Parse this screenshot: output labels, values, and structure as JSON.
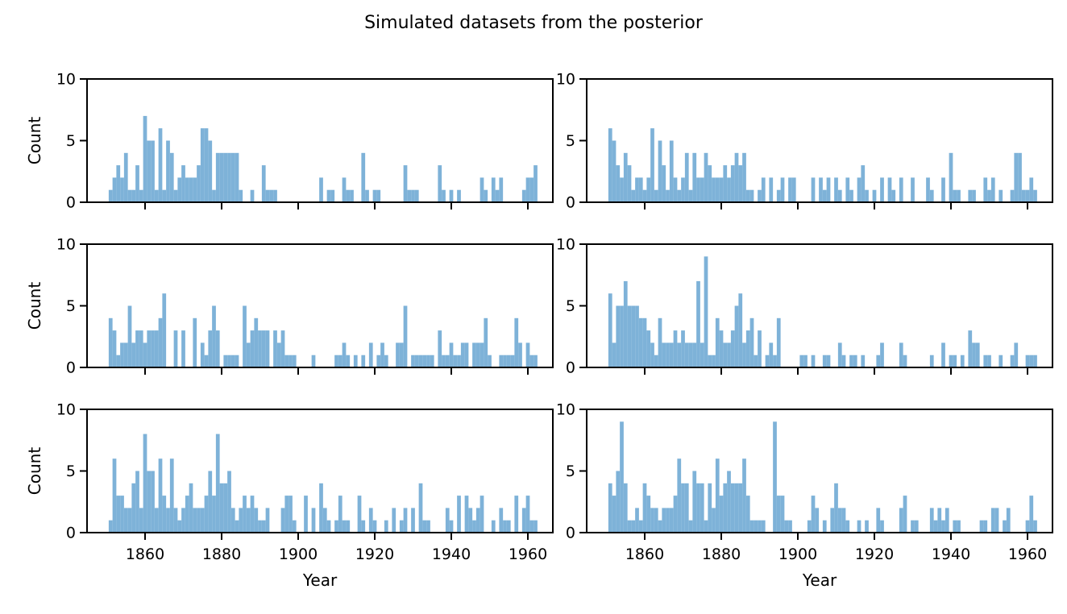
{
  "figure": {
    "title": "Simulated datasets from the posterior"
  },
  "style": {
    "bar_color": "#7eb2d8",
    "axis_color": "#000000",
    "text_color": "#000000",
    "background": "#ffffff"
  },
  "chart_data": {
    "type": "bar",
    "title": "Simulated datasets from the posterior",
    "xlabel": "Year",
    "ylabel": "Count",
    "x_start": 1851,
    "x_end": 1962,
    "ylim": [
      0,
      10
    ],
    "x_ticks": [
      1860,
      1880,
      1900,
      1920,
      1940,
      1960
    ],
    "y_ticks": [
      0,
      5,
      10
    ],
    "layout": {
      "rows": 3,
      "cols": 2,
      "grid": false,
      "legend": "none"
    },
    "subplots": [
      {
        "position": "row1-col1",
        "values": [
          1,
          2,
          3,
          2,
          4,
          1,
          1,
          3,
          1,
          7,
          5,
          5,
          1,
          6,
          1,
          5,
          4,
          1,
          2,
          3,
          2,
          2,
          2,
          3,
          6,
          6,
          5,
          1,
          4,
          4,
          4,
          4,
          4,
          4,
          1,
          0,
          0,
          1,
          0,
          0,
          3,
          1,
          1,
          1,
          0,
          0,
          0,
          0,
          0,
          0,
          0,
          0,
          0,
          0,
          0,
          2,
          0,
          1,
          1,
          0,
          0,
          2,
          1,
          1,
          0,
          0,
          4,
          1,
          0,
          1,
          1,
          0,
          0,
          0,
          0,
          0,
          0,
          3,
          1,
          1,
          1,
          0,
          0,
          0,
          0,
          0,
          3,
          1,
          0,
          1,
          0,
          1,
          0,
          0,
          0,
          0,
          0,
          2,
          1,
          0,
          2,
          1,
          2,
          0,
          0,
          0,
          0,
          0,
          1,
          2,
          2,
          3
        ]
      },
      {
        "position": "row1-col2",
        "values": [
          6,
          5,
          3,
          2,
          4,
          3,
          1,
          2,
          2,
          1,
          2,
          6,
          1,
          5,
          3,
          1,
          5,
          2,
          1,
          2,
          4,
          1,
          4,
          2,
          2,
          4,
          3,
          2,
          2,
          2,
          3,
          2,
          3,
          4,
          3,
          4,
          1,
          1,
          0,
          1,
          2,
          0,
          2,
          0,
          1,
          2,
          0,
          2,
          2,
          0,
          0,
          0,
          0,
          2,
          0,
          2,
          1,
          2,
          0,
          2,
          1,
          0,
          2,
          1,
          0,
          2,
          3,
          1,
          0,
          1,
          0,
          2,
          0,
          2,
          1,
          0,
          2,
          0,
          0,
          2,
          0,
          0,
          0,
          2,
          1,
          0,
          0,
          2,
          0,
          4,
          1,
          1,
          0,
          0,
          1,
          1,
          0,
          0,
          2,
          1,
          2,
          0,
          1,
          0,
          0,
          1,
          4,
          4,
          1,
          1,
          2,
          1
        ]
      },
      {
        "position": "row2-col1",
        "values": [
          4,
          3,
          1,
          2,
          2,
          5,
          2,
          3,
          3,
          2,
          3,
          3,
          3,
          4,
          6,
          0,
          0,
          3,
          0,
          3,
          0,
          0,
          4,
          0,
          2,
          1,
          3,
          5,
          3,
          0,
          1,
          1,
          1,
          1,
          0,
          5,
          2,
          3,
          4,
          3,
          3,
          3,
          0,
          3,
          2,
          3,
          1,
          1,
          1,
          0,
          0,
          0,
          0,
          1,
          0,
          0,
          0,
          0,
          0,
          1,
          1,
          2,
          1,
          0,
          1,
          0,
          1,
          0,
          2,
          0,
          1,
          2,
          1,
          0,
          0,
          2,
          2,
          5,
          0,
          1,
          1,
          1,
          1,
          1,
          1,
          0,
          3,
          1,
          1,
          2,
          1,
          1,
          2,
          2,
          0,
          2,
          2,
          2,
          4,
          1,
          0,
          0,
          1,
          1,
          1,
          1,
          4,
          2,
          0,
          2,
          1,
          1
        ]
      },
      {
        "position": "row2-col2",
        "values": [
          6,
          2,
          5,
          5,
          7,
          5,
          5,
          5,
          4,
          4,
          3,
          2,
          1,
          4,
          2,
          2,
          2,
          3,
          2,
          3,
          2,
          2,
          2,
          7,
          2,
          9,
          1,
          1,
          4,
          3,
          2,
          2,
          3,
          5,
          6,
          2,
          3,
          4,
          1,
          3,
          0,
          1,
          2,
          1,
          4,
          0,
          0,
          0,
          0,
          0,
          1,
          1,
          0,
          1,
          0,
          0,
          1,
          1,
          0,
          0,
          2,
          1,
          0,
          1,
          1,
          0,
          1,
          0,
          0,
          0,
          1,
          2,
          0,
          0,
          0,
          0,
          2,
          1,
          0,
          0,
          0,
          0,
          0,
          0,
          1,
          0,
          0,
          2,
          0,
          1,
          1,
          0,
          1,
          0,
          3,
          2,
          2,
          0,
          1,
          1,
          0,
          0,
          1,
          0,
          0,
          1,
          2,
          0,
          0,
          1,
          1,
          1
        ]
      },
      {
        "position": "row3-col1",
        "values": [
          1,
          6,
          3,
          3,
          2,
          2,
          4,
          5,
          2,
          8,
          5,
          5,
          2,
          6,
          3,
          2,
          6,
          2,
          1,
          2,
          3,
          4,
          2,
          2,
          2,
          3,
          5,
          3,
          8,
          4,
          4,
          5,
          2,
          1,
          2,
          3,
          2,
          3,
          2,
          1,
          1,
          2,
          0,
          0,
          0,
          2,
          3,
          3,
          1,
          0,
          0,
          3,
          0,
          2,
          0,
          4,
          2,
          1,
          0,
          1,
          3,
          1,
          1,
          0,
          0,
          3,
          1,
          0,
          2,
          1,
          0,
          0,
          1,
          0,
          2,
          0,
          1,
          2,
          0,
          2,
          0,
          4,
          1,
          1,
          0,
          0,
          0,
          0,
          2,
          1,
          0,
          3,
          0,
          3,
          2,
          1,
          2,
          3,
          0,
          0,
          1,
          0,
          2,
          1,
          1,
          0,
          3,
          0,
          2,
          3,
          1,
          1
        ]
      },
      {
        "position": "row3-col2",
        "values": [
          4,
          3,
          5,
          9,
          4,
          1,
          1,
          2,
          1,
          4,
          3,
          2,
          2,
          1,
          2,
          2,
          2,
          3,
          6,
          4,
          4,
          1,
          5,
          4,
          4,
          1,
          4,
          2,
          6,
          3,
          4,
          5,
          4,
          4,
          4,
          6,
          3,
          1,
          1,
          1,
          1,
          0,
          0,
          9,
          3,
          3,
          1,
          1,
          0,
          0,
          0,
          0,
          1,
          3,
          2,
          0,
          1,
          0,
          2,
          4,
          2,
          2,
          1,
          0,
          0,
          1,
          0,
          1,
          0,
          0,
          2,
          1,
          0,
          0,
          0,
          0,
          2,
          3,
          0,
          1,
          1,
          0,
          0,
          0,
          2,
          1,
          2,
          1,
          2,
          0,
          1,
          1,
          0,
          0,
          0,
          0,
          0,
          1,
          1,
          0,
          2,
          2,
          0,
          1,
          2,
          0,
          0,
          0,
          0,
          1,
          3,
          1
        ]
      }
    ]
  }
}
